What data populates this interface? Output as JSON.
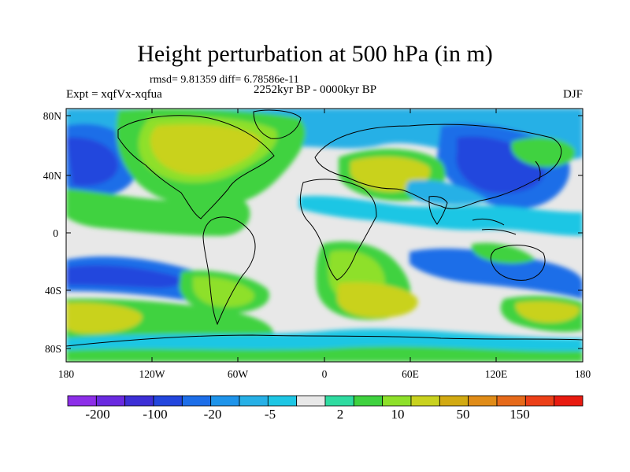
{
  "title": "Height perturbation at 500 hPa (in m)",
  "stats": "rmsd= 9.81359 diff= 6.78586e-11",
  "expt": "Expt = xqfVx-xqfua",
  "period": "2252kyr BP - 0000kyr BP",
  "season": "DJF",
  "lat_ticks": [
    "80N",
    "40N",
    "0",
    "40S",
    "80S"
  ],
  "lon_ticks": [
    "180",
    "120W",
    "60W",
    "0",
    "60E",
    "120E",
    "180"
  ],
  "colorbar_labels": [
    "-200",
    "-100",
    "-20",
    "-5",
    "2",
    "10",
    "50",
    "150"
  ],
  "colorbar_colors": [
    "#8d2fe8",
    "#6a2ae0",
    "#3d2fd6",
    "#2346dd",
    "#1d6ee8",
    "#1f94ea",
    "#27b0e6",
    "#1ec6e4",
    "#e8e8e8",
    "#2fdba0",
    "#3fd23f",
    "#8ee02a",
    "#c9d21f",
    "#d2aa12",
    "#e08c18",
    "#e66a1a",
    "#ec4018",
    "#e81b10"
  ],
  "ocean_color": "#e8e8e8"
}
